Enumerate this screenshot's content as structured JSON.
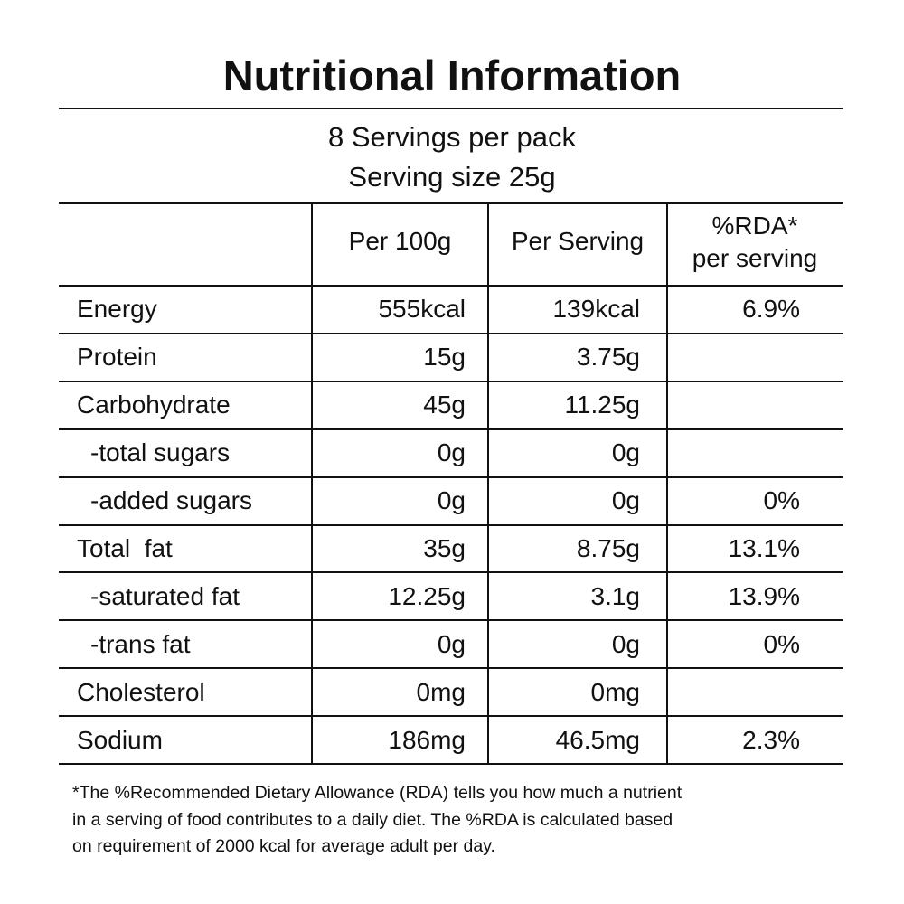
{
  "header": {
    "title": "Nutritional Information"
  },
  "serving": {
    "lines": [
      "8 Servings per pack",
      "Serving size 25g"
    ]
  },
  "table": {
    "columns": [
      [
        "Per 100g"
      ],
      [
        "Per Serving"
      ],
      [
        "%RDA*",
        "per serving"
      ]
    ],
    "rows": [
      {
        "nutrient": "Energy",
        "per_100g": "555kcal",
        "per_serving": "139kcal",
        "rda": "6.9%"
      },
      {
        "nutrient": "Protein",
        "per_100g": "15g",
        "per_serving": "3.75g"
      },
      {
        "nutrient": "Carbohydrate",
        "per_100g": "45g",
        "per_serving": "11.25g"
      },
      {
        "nutrient": "-total sugars",
        "per_100g": "0g",
        "per_serving": "0g"
      },
      {
        "nutrient": "-added sugars",
        "per_100g": "0g",
        "per_serving": "0g",
        "rda": "0%"
      },
      {
        "nutrient": "Total  fat",
        "per_100g": "35g",
        "per_serving": "8.75g",
        "rda": "13.1%"
      },
      {
        "nutrient": "-saturated fat",
        "per_100g": "12.25g",
        "per_serving": "3.1g",
        "rda": "13.9%"
      },
      {
        "nutrient": "-trans fat",
        "per_100g": "0g",
        "per_serving": "0g",
        "rda": "0%"
      },
      {
        "nutrient": "Cholesterol",
        "per_100g": "0mg",
        "per_serving": "0mg"
      },
      {
        "nutrient": "Sodium",
        "per_100g": "186mg",
        "per_serving": "46.5mg",
        "rda": "2.3%"
      }
    ]
  },
  "footnote": {
    "lines": [
      "*The %Recommended Dietary Allowance (RDA) tells you how much a nutrient",
      "in a serving of food contributes to a daily diet. The %RDA is calculated based",
      "on requirement of 2000 kcal for average adult per day."
    ]
  }
}
